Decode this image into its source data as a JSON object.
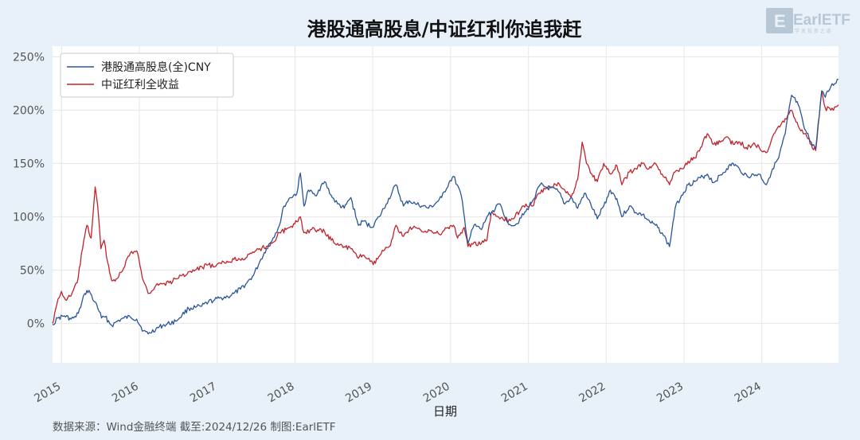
{
  "chart_data": {
    "type": "line",
    "title": "港股通高股息/中证红利你追我赶",
    "xlabel": "日期",
    "ylabel": "",
    "x_ticks": [
      "2015",
      "2016",
      "2017",
      "2018",
      "2019",
      "2020",
      "2021",
      "2022",
      "2023",
      "2024"
    ],
    "y_ticks": [
      "0%",
      "50%",
      "100%",
      "150%",
      "200%",
      "250%"
    ],
    "ylim": [
      -37,
      260
    ],
    "y_unit": "%",
    "grid": true,
    "legend_position": "top-left",
    "source_note": "数据来源：Wind金融终端 截至:2024/12/26 制图:EarlETF",
    "series": [
      {
        "name": "港股通高股息(全)CNY",
        "color": "#2a5599",
        "points": [
          [
            "2014-11-20",
            -1
          ],
          [
            "2014-12-15",
            5
          ],
          [
            "2015-01-15",
            7
          ],
          [
            "2015-02-15",
            4
          ],
          [
            "2015-03-10",
            6
          ],
          [
            "2015-04-01",
            15
          ],
          [
            "2015-04-20",
            28
          ],
          [
            "2015-05-10",
            31
          ],
          [
            "2015-05-28",
            22
          ],
          [
            "2015-06-15",
            18
          ],
          [
            "2015-07-08",
            5
          ],
          [
            "2015-07-25",
            6
          ],
          [
            "2015-08-25",
            -2
          ],
          [
            "2015-09-20",
            2
          ],
          [
            "2015-10-20",
            5
          ],
          [
            "2015-11-20",
            6
          ],
          [
            "2015-12-20",
            4
          ],
          [
            "2016-01-20",
            -7
          ],
          [
            "2016-02-12",
            -10
          ],
          [
            "2016-03-20",
            -5
          ],
          [
            "2016-04-20",
            -2
          ],
          [
            "2016-06-20",
            2
          ],
          [
            "2016-07-20",
            8
          ],
          [
            "2016-08-20",
            14
          ],
          [
            "2016-09-20",
            15
          ],
          [
            "2016-10-20",
            16
          ],
          [
            "2016-11-20",
            20
          ],
          [
            "2016-12-20",
            22
          ],
          [
            "2017-01-20",
            24
          ],
          [
            "2017-02-20",
            25
          ],
          [
            "2017-03-20",
            28
          ],
          [
            "2017-04-20",
            32
          ],
          [
            "2017-05-20",
            38
          ],
          [
            "2017-06-20",
            45
          ],
          [
            "2017-07-20",
            58
          ],
          [
            "2017-08-20",
            70
          ],
          [
            "2017-09-20",
            80
          ],
          [
            "2017-10-20",
            92
          ],
          [
            "2017-11-10",
            110
          ],
          [
            "2017-12-10",
            118
          ],
          [
            "2018-01-10",
            122
          ],
          [
            "2018-01-26",
            141
          ],
          [
            "2018-02-12",
            110
          ],
          [
            "2018-03-05",
            125
          ],
          [
            "2018-04-05",
            120
          ],
          [
            "2018-05-20",
            133
          ],
          [
            "2018-06-25",
            118
          ],
          [
            "2018-07-20",
            112
          ],
          [
            "2018-08-20",
            108
          ],
          [
            "2018-09-20",
            118
          ],
          [
            "2018-10-25",
            92
          ],
          [
            "2018-11-20",
            96
          ],
          [
            "2018-12-25",
            90
          ],
          [
            "2019-02-01",
            100
          ],
          [
            "2019-03-05",
            112
          ],
          [
            "2019-04-20",
            130
          ],
          [
            "2019-05-25",
            110
          ],
          [
            "2019-06-20",
            115
          ],
          [
            "2019-07-20",
            112
          ],
          [
            "2019-08-25",
            110
          ],
          [
            "2019-09-20",
            108
          ],
          [
            "2019-10-20",
            112
          ],
          [
            "2019-11-20",
            118
          ],
          [
            "2019-12-25",
            132
          ],
          [
            "2020-01-15",
            138
          ],
          [
            "2020-02-20",
            120
          ],
          [
            "2020-03-23",
            75
          ],
          [
            "2020-04-20",
            92
          ],
          [
            "2020-05-25",
            88
          ],
          [
            "2020-06-20",
            100
          ],
          [
            "2020-08-20",
            112
          ],
          [
            "2020-09-25",
            95
          ],
          [
            "2020-10-30",
            92
          ],
          [
            "2020-12-20",
            105
          ],
          [
            "2021-01-20",
            115
          ],
          [
            "2021-02-25",
            130
          ],
          [
            "2021-03-20",
            128
          ],
          [
            "2021-05-20",
            124
          ],
          [
            "2021-06-20",
            112
          ],
          [
            "2021-07-20",
            118
          ],
          [
            "2021-08-20",
            108
          ],
          [
            "2021-09-20",
            122
          ],
          [
            "2021-10-20",
            112
          ],
          [
            "2021-11-20",
            98
          ],
          [
            "2021-12-20",
            110
          ],
          [
            "2022-01-20",
            125
          ],
          [
            "2022-02-20",
            117
          ],
          [
            "2022-03-15",
            100
          ],
          [
            "2022-04-20",
            110
          ],
          [
            "2022-05-20",
            104
          ],
          [
            "2022-06-20",
            102
          ],
          [
            "2022-07-25",
            95
          ],
          [
            "2022-08-20",
            92
          ],
          [
            "2022-09-20",
            85
          ],
          [
            "2022-10-25",
            72
          ],
          [
            "2022-11-20",
            108
          ],
          [
            "2022-12-20",
            120
          ],
          [
            "2023-01-20",
            130
          ],
          [
            "2023-02-20",
            133
          ],
          [
            "2023-04-20",
            140
          ],
          [
            "2023-05-20",
            132
          ],
          [
            "2023-07-20",
            145
          ],
          [
            "2023-08-20",
            150
          ],
          [
            "2023-09-20",
            144
          ],
          [
            "2023-10-25",
            138
          ],
          [
            "2023-12-20",
            140
          ],
          [
            "2024-01-22",
            130
          ],
          [
            "2024-02-20",
            145
          ],
          [
            "2024-03-20",
            155
          ],
          [
            "2024-04-20",
            178
          ],
          [
            "2024-05-20",
            214
          ],
          [
            "2024-06-20",
            205
          ],
          [
            "2024-07-20",
            182
          ],
          [
            "2024-08-20",
            170
          ],
          [
            "2024-09-10",
            164
          ],
          [
            "2024-10-08",
            218
          ],
          [
            "2024-10-25",
            212
          ],
          [
            "2024-11-20",
            222
          ],
          [
            "2024-12-26",
            229
          ]
        ]
      },
      {
        "name": "中证红利全收益",
        "color": "#c0232d",
        "points": [
          [
            "2014-11-20",
            0
          ],
          [
            "2014-12-10",
            18
          ],
          [
            "2015-01-01",
            30
          ],
          [
            "2015-01-20",
            22
          ],
          [
            "2015-02-15",
            26
          ],
          [
            "2015-03-15",
            38
          ],
          [
            "2015-04-10",
            70
          ],
          [
            "2015-04-30",
            92
          ],
          [
            "2015-05-20",
            80
          ],
          [
            "2015-06-08",
            128
          ],
          [
            "2015-06-20",
            110
          ],
          [
            "2015-07-05",
            70
          ],
          [
            "2015-07-20",
            78
          ],
          [
            "2015-08-05",
            58
          ],
          [
            "2015-08-25",
            40
          ],
          [
            "2015-09-20",
            42
          ],
          [
            "2015-10-20",
            52
          ],
          [
            "2015-11-20",
            66
          ],
          [
            "2015-12-20",
            68
          ],
          [
            "2016-01-20",
            40
          ],
          [
            "2016-02-12",
            28
          ],
          [
            "2016-03-20",
            36
          ],
          [
            "2016-05-20",
            38
          ],
          [
            "2016-07-20",
            45
          ],
          [
            "2016-09-20",
            50
          ],
          [
            "2016-11-20",
            55
          ],
          [
            "2016-12-20",
            53
          ],
          [
            "2017-01-20",
            56
          ],
          [
            "2017-03-20",
            60
          ],
          [
            "2017-05-20",
            62
          ],
          [
            "2017-07-20",
            70
          ],
          [
            "2017-08-20",
            72
          ],
          [
            "2017-09-20",
            76
          ],
          [
            "2017-10-20",
            85
          ],
          [
            "2017-11-20",
            88
          ],
          [
            "2017-12-20",
            90
          ],
          [
            "2018-01-26",
            100
          ],
          [
            "2018-02-12",
            85
          ],
          [
            "2018-03-20",
            88
          ],
          [
            "2018-05-20",
            86
          ],
          [
            "2018-06-20",
            78
          ],
          [
            "2018-07-20",
            75
          ],
          [
            "2018-08-20",
            72
          ],
          [
            "2018-09-20",
            70
          ],
          [
            "2018-10-20",
            62
          ],
          [
            "2018-11-20",
            64
          ],
          [
            "2018-12-20",
            58
          ],
          [
            "2019-01-03",
            55
          ],
          [
            "2019-02-20",
            68
          ],
          [
            "2019-03-20",
            72
          ],
          [
            "2019-04-20",
            92
          ],
          [
            "2019-05-20",
            82
          ],
          [
            "2019-06-20",
            88
          ],
          [
            "2019-07-20",
            90
          ],
          [
            "2019-08-20",
            86
          ],
          [
            "2019-09-20",
            88
          ],
          [
            "2019-10-20",
            85
          ],
          [
            "2019-11-20",
            84
          ],
          [
            "2019-12-20",
            90
          ],
          [
            "2020-01-15",
            92
          ],
          [
            "2020-02-03",
            80
          ],
          [
            "2020-03-05",
            90
          ],
          [
            "2020-03-23",
            72
          ],
          [
            "2020-04-20",
            76
          ],
          [
            "2020-05-20",
            74
          ],
          [
            "2020-06-20",
            78
          ],
          [
            "2020-07-10",
            104
          ],
          [
            "2020-08-20",
            98
          ],
          [
            "2020-09-20",
            96
          ],
          [
            "2020-10-20",
            98
          ],
          [
            "2020-11-20",
            105
          ],
          [
            "2020-12-20",
            112
          ],
          [
            "2021-01-20",
            110
          ],
          [
            "2021-02-20",
            122
          ],
          [
            "2021-03-20",
            126
          ],
          [
            "2021-04-20",
            128
          ],
          [
            "2021-05-20",
            132
          ],
          [
            "2021-06-20",
            125
          ],
          [
            "2021-07-20",
            118
          ],
          [
            "2021-08-20",
            135
          ],
          [
            "2021-09-10",
            170
          ],
          [
            "2021-09-30",
            150
          ],
          [
            "2021-10-25",
            140
          ],
          [
            "2021-11-20",
            133
          ],
          [
            "2021-12-20",
            150
          ],
          [
            "2022-01-20",
            140
          ],
          [
            "2022-02-20",
            148
          ],
          [
            "2022-03-15",
            130
          ],
          [
            "2022-04-20",
            142
          ],
          [
            "2022-05-20",
            145
          ],
          [
            "2022-06-20",
            150
          ],
          [
            "2022-07-20",
            145
          ],
          [
            "2022-08-20",
            150
          ],
          [
            "2022-09-20",
            140
          ],
          [
            "2022-10-25",
            130
          ],
          [
            "2022-11-20",
            142
          ],
          [
            "2022-12-20",
            145
          ],
          [
            "2023-01-20",
            152
          ],
          [
            "2023-02-20",
            155
          ],
          [
            "2023-03-20",
            165
          ],
          [
            "2023-04-20",
            178
          ],
          [
            "2023-05-20",
            168
          ],
          [
            "2023-06-20",
            170
          ],
          [
            "2023-07-20",
            175
          ],
          [
            "2023-08-20",
            168
          ],
          [
            "2023-09-20",
            170
          ],
          [
            "2023-10-20",
            165
          ],
          [
            "2023-11-20",
            168
          ],
          [
            "2023-12-20",
            165
          ],
          [
            "2024-01-22",
            160
          ],
          [
            "2024-02-20",
            175
          ],
          [
            "2024-03-20",
            185
          ],
          [
            "2024-04-20",
            192
          ],
          [
            "2024-05-20",
            200
          ],
          [
            "2024-06-20",
            185
          ],
          [
            "2024-07-20",
            178
          ],
          [
            "2024-08-20",
            168
          ],
          [
            "2024-09-10",
            162
          ],
          [
            "2024-10-08",
            218
          ],
          [
            "2024-10-25",
            202
          ],
          [
            "2024-11-20",
            200
          ],
          [
            "2024-12-26",
            205
          ]
        ]
      }
    ]
  },
  "logo": {
    "text": "EarlETF",
    "sub": "学 发 投 资 之 道"
  }
}
